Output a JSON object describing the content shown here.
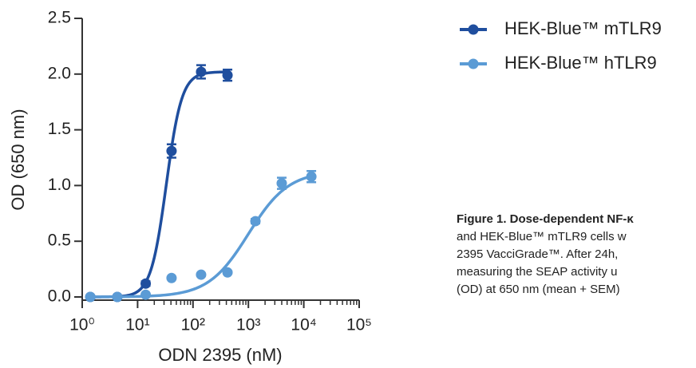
{
  "chart_data": {
    "type": "scatter",
    "xlabel": "ODN 2395 (nM)",
    "ylabel": "OD (650 nm)",
    "xscale": "log",
    "xlim": [
      1,
      100000
    ],
    "xticks": [
      {
        "value": 1,
        "label": "10⁰"
      },
      {
        "value": 10,
        "label": "10¹"
      },
      {
        "value": 100,
        "label": "10²"
      },
      {
        "value": 1000,
        "label": "10³"
      },
      {
        "value": 10000,
        "label": "10⁴"
      },
      {
        "value": 100000,
        "label": "10⁵"
      }
    ],
    "xminor_ticks": [
      20,
      30,
      40,
      50,
      60,
      70,
      80,
      90,
      200,
      300,
      400,
      500,
      600,
      700,
      800,
      900,
      2000,
      3000,
      4000,
      5000,
      6000,
      7000,
      8000,
      9000,
      20000,
      30000,
      40000,
      50000,
      60000,
      70000,
      80000,
      90000
    ],
    "ylim": [
      0,
      2.5
    ],
    "yticks": [
      {
        "value": 0,
        "label": "0.0"
      },
      0.5,
      {
        "value": 1,
        "label": "1.0"
      },
      1.5,
      {
        "value": 2,
        "label": "2.0"
      },
      2.5
    ],
    "series": [
      {
        "name": "HEK-Blue™ mTLR9",
        "color": "#1f4e9e",
        "x": [
          1.4,
          4.3,
          14,
          41,
          140,
          420
        ],
        "values": [
          0,
          0,
          0.12,
          1.31,
          2.02,
          1.99
        ],
        "errors": [
          0.01,
          0.01,
          0.02,
          0.06,
          0.06,
          0.05
        ],
        "fit": {
          "bottom": 0,
          "top": 2.02,
          "ec50": 33,
          "hill": 3.1
        }
      },
      {
        "name": "HEK-Blue™ hTLR9",
        "color": "#5b9bd5",
        "x": [
          1.4,
          4.3,
          14,
          41,
          140,
          420,
          1340,
          4000,
          13700
        ],
        "values": [
          0,
          0,
          0.02,
          0.17,
          0.2,
          0.22,
          0.68,
          1.02,
          1.08
        ],
        "errors": [
          0.01,
          0.01,
          0.01,
          0.01,
          0.01,
          0.01,
          0.02,
          0.05,
          0.05
        ],
        "fit": {
          "bottom": 0,
          "top": 1.13,
          "ec50": 1000,
          "hill": 1.2
        }
      }
    ],
    "caption": [
      "Figure 1. Dose-dependent NF-κ",
      "and HEK-Blue™ mTLR9 cells w",
      "2395 VacciGrade™. After 24h,",
      "measuring the SEAP activity u",
      "(OD) at 650 nm (mean + SEM)"
    ]
  }
}
